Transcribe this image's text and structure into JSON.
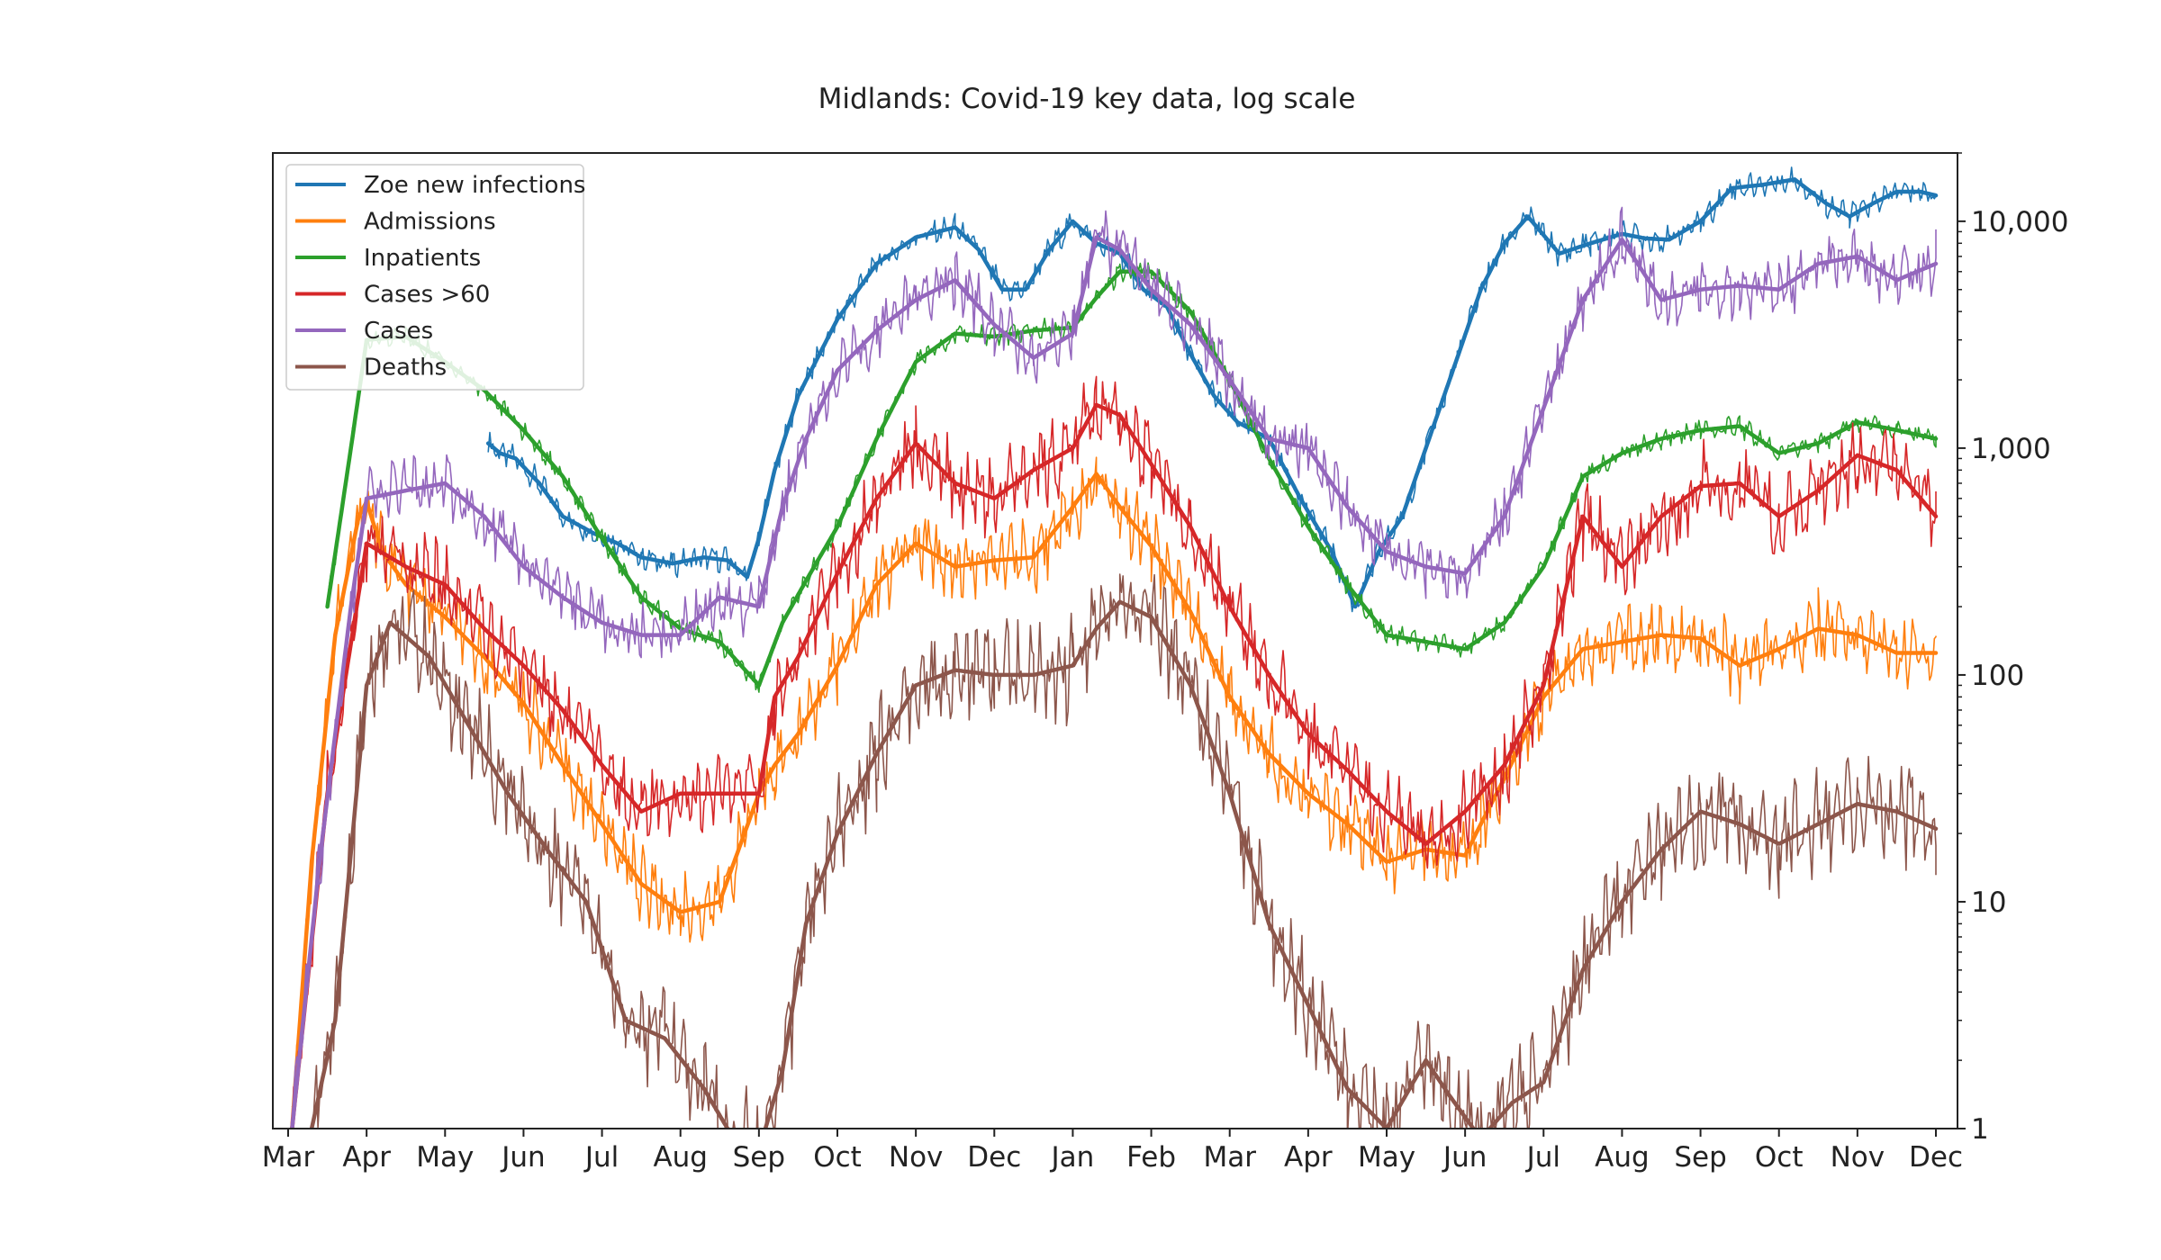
{
  "chart_data": {
    "type": "line",
    "title": "Midlands: Covid-19 key data, log scale",
    "xlabel": "",
    "ylabel": "",
    "y_scale": "log",
    "ylim": [
      1,
      20000
    ],
    "y_ticks": [
      1,
      10,
      100,
      1000,
      10000
    ],
    "y_tick_labels": [
      "1",
      "10",
      "100",
      "1,000",
      "10,000"
    ],
    "y_axis_side": "right",
    "grid": false,
    "legend_position": "top-left",
    "x_tick_labels": [
      "Mar",
      "Apr",
      "May",
      "Jun",
      "Jul",
      "Aug",
      "Sep",
      "Oct",
      "Nov",
      "Dec",
      "Jan",
      "Feb",
      "Mar",
      "Apr",
      "May",
      "Jun",
      "Jul",
      "Aug",
      "Sep",
      "Oct",
      "Nov",
      "Dec"
    ],
    "series": [
      {
        "name": "Zoe new infections",
        "color": "#1f77b4",
        "x_index": [
          2.55,
          2.7,
          2.9,
          3.2,
          3.5,
          3.9,
          4.2,
          4.5,
          4.9,
          5.3,
          5.6,
          5.85,
          6.0,
          6.2,
          6.5,
          7.0,
          7.5,
          8.0,
          8.5,
          8.8,
          9.1,
          9.4,
          9.7,
          10.0,
          10.3,
          10.6,
          10.9,
          11.2,
          11.5,
          11.8,
          12.1,
          12.5,
          12.9,
          13.3,
          13.6,
          13.9,
          14.2,
          14.5,
          14.9,
          15.2,
          15.5,
          15.8,
          16.2,
          16.6,
          17.0,
          17.3,
          17.6,
          18.0,
          18.4,
          18.8,
          19.2,
          19.6,
          19.9,
          20.2,
          20.5,
          20.8,
          21.0
        ],
        "values": [
          1050,
          950,
          900,
          700,
          500,
          420,
          380,
          330,
          310,
          330,
          320,
          270,
          400,
          800,
          1700,
          3700,
          6500,
          8500,
          9400,
          7500,
          5000,
          5000,
          7500,
          10000,
          8000,
          7200,
          5000,
          4200,
          2600,
          1700,
          1300,
          1100,
          600,
          350,
          200,
          350,
          500,
          1000,
          2500,
          5000,
          8000,
          10500,
          7200,
          8000,
          8800,
          8400,
          8300,
          10000,
          14000,
          14500,
          15300,
          12000,
          10500,
          12000,
          13500,
          13500,
          13000
        ]
      },
      {
        "name": "Admissions",
        "color": "#ff7f0e",
        "x_index": [
          0.05,
          0.3,
          0.6,
          0.9,
          1.0,
          1.2,
          1.5,
          2.0,
          2.5,
          3.0,
          3.5,
          4.0,
          4.5,
          5.0,
          5.5,
          6.0,
          6.2,
          6.5,
          7.0,
          7.5,
          8.0,
          8.5,
          9.0,
          9.5,
          10.0,
          10.3,
          10.6,
          11.0,
          11.5,
          12.0,
          12.5,
          13.0,
          13.5,
          14.0,
          14.5,
          15.0,
          15.2,
          15.5,
          16.0,
          16.5,
          17.0,
          17.5,
          18.0,
          18.5,
          19.0,
          19.5,
          20.0,
          20.5,
          21.0
        ],
        "values": [
          1,
          15,
          150,
          500,
          580,
          350,
          250,
          180,
          120,
          75,
          40,
          22,
          12,
          9,
          10,
          30,
          40,
          55,
          110,
          250,
          380,
          300,
          320,
          330,
          550,
          770,
          550,
          370,
          190,
          80,
          45,
          30,
          22,
          15,
          17,
          16,
          22,
          35,
          80,
          130,
          140,
          150,
          145,
          110,
          130,
          160,
          150,
          125,
          125
        ]
      },
      {
        "name": "Inpatients",
        "color": "#2ca02c",
        "x_index": [
          0.5,
          0.8,
          1.0,
          1.5,
          2.0,
          2.5,
          3.0,
          3.5,
          4.0,
          4.5,
          5.0,
          5.5,
          6.0,
          6.3,
          6.6,
          7.0,
          7.5,
          8.0,
          8.5,
          9.0,
          9.5,
          10.0,
          10.3,
          10.6,
          11.0,
          11.5,
          12.0,
          12.5,
          13.0,
          13.5,
          14.0,
          14.5,
          15.0,
          15.5,
          16.0,
          16.5,
          17.0,
          17.5,
          18.0,
          18.5,
          19.0,
          19.5,
          20.0,
          20.5,
          21.0
        ],
        "values": [
          200,
          1000,
          3000,
          3100,
          2400,
          1800,
          1200,
          750,
          400,
          220,
          160,
          140,
          90,
          170,
          260,
          450,
          1100,
          2400,
          3200,
          3100,
          3300,
          3400,
          4600,
          6000,
          6000,
          4000,
          2000,
          900,
          450,
          250,
          150,
          140,
          130,
          170,
          300,
          750,
          950,
          1100,
          1200,
          1250,
          950,
          1050,
          1300,
          1200,
          1100
        ]
      },
      {
        "name": "Cases >60",
        "color": "#d62728",
        "x_index": [
          0.05,
          0.5,
          1.0,
          1.5,
          2.0,
          2.5,
          3.0,
          3.5,
          4.0,
          4.5,
          5.0,
          5.5,
          6.0,
          6.2,
          6.5,
          7.0,
          7.5,
          8.0,
          8.5,
          9.0,
          9.5,
          10.0,
          10.3,
          10.6,
          11.0,
          11.5,
          12.0,
          12.5,
          13.0,
          13.5,
          14.0,
          14.5,
          15.0,
          15.5,
          16.0,
          16.5,
          17.0,
          17.5,
          18.0,
          18.5,
          19.0,
          19.5,
          20.0,
          20.5,
          21.0
        ],
        "values": [
          1,
          30,
          380,
          300,
          250,
          160,
          110,
          70,
          40,
          25,
          30,
          30,
          30,
          80,
          120,
          280,
          600,
          1050,
          700,
          600,
          800,
          1000,
          1550,
          1400,
          850,
          450,
          200,
          100,
          55,
          38,
          25,
          18,
          25,
          40,
          90,
          500,
          300,
          500,
          680,
          700,
          500,
          650,
          930,
          800,
          500
        ]
      },
      {
        "name": "Cases",
        "color": "#9467bd",
        "x_index": [
          0.05,
          0.4,
          0.8,
          1.0,
          1.5,
          2.0,
          2.5,
          3.0,
          3.5,
          4.0,
          4.5,
          5.0,
          5.5,
          6.0,
          6.3,
          6.6,
          7.0,
          7.5,
          8.0,
          8.5,
          9.0,
          9.5,
          10.0,
          10.3,
          10.6,
          11.0,
          11.5,
          12.0,
          12.5,
          13.0,
          13.5,
          14.0,
          14.5,
          15.0,
          15.5,
          16.0,
          16.5,
          17.0,
          17.5,
          18.0,
          18.5,
          19.0,
          19.5,
          20.0,
          20.5,
          21.0
        ],
        "values": [
          1,
          15,
          200,
          600,
          650,
          700,
          500,
          300,
          220,
          170,
          150,
          150,
          220,
          200,
          550,
          1100,
          2200,
          3300,
          4500,
          5500,
          3500,
          2500,
          3200,
          8500,
          7500,
          5000,
          3500,
          2000,
          1100,
          1000,
          550,
          350,
          300,
          280,
          500,
          1500,
          4500,
          8300,
          4500,
          5000,
          5200,
          5000,
          6500,
          7000,
          5500,
          6500
        ]
      },
      {
        "name": "Deaths",
        "color": "#8c564b",
        "x_index": [
          0.3,
          0.6,
          1.0,
          1.3,
          1.8,
          2.3,
          2.8,
          3.3,
          3.8,
          4.3,
          4.8,
          5.3,
          5.6,
          6.0,
          6.3,
          6.6,
          7.0,
          7.5,
          8.0,
          8.5,
          9.0,
          9.5,
          10.0,
          10.3,
          10.6,
          11.0,
          11.5,
          12.0,
          12.5,
          13.0,
          13.5,
          14.0,
          14.5,
          14.8,
          15.2,
          15.6,
          16.0,
          16.5,
          17.0,
          17.5,
          18.0,
          18.5,
          19.0,
          19.5,
          20.0,
          20.5,
          21.0
        ],
        "values": [
          1,
          3,
          90,
          170,
          120,
          60,
          30,
          17,
          10,
          3,
          2.5,
          1.5,
          1,
          0.8,
          1.8,
          8,
          20,
          45,
          90,
          105,
          100,
          100,
          110,
          160,
          210,
          180,
          90,
          30,
          8,
          3.5,
          1.5,
          1,
          2,
          1.4,
          0.9,
          1.3,
          1.6,
          5,
          10,
          17,
          25,
          22,
          18,
          22,
          27,
          25,
          21
        ]
      }
    ]
  }
}
